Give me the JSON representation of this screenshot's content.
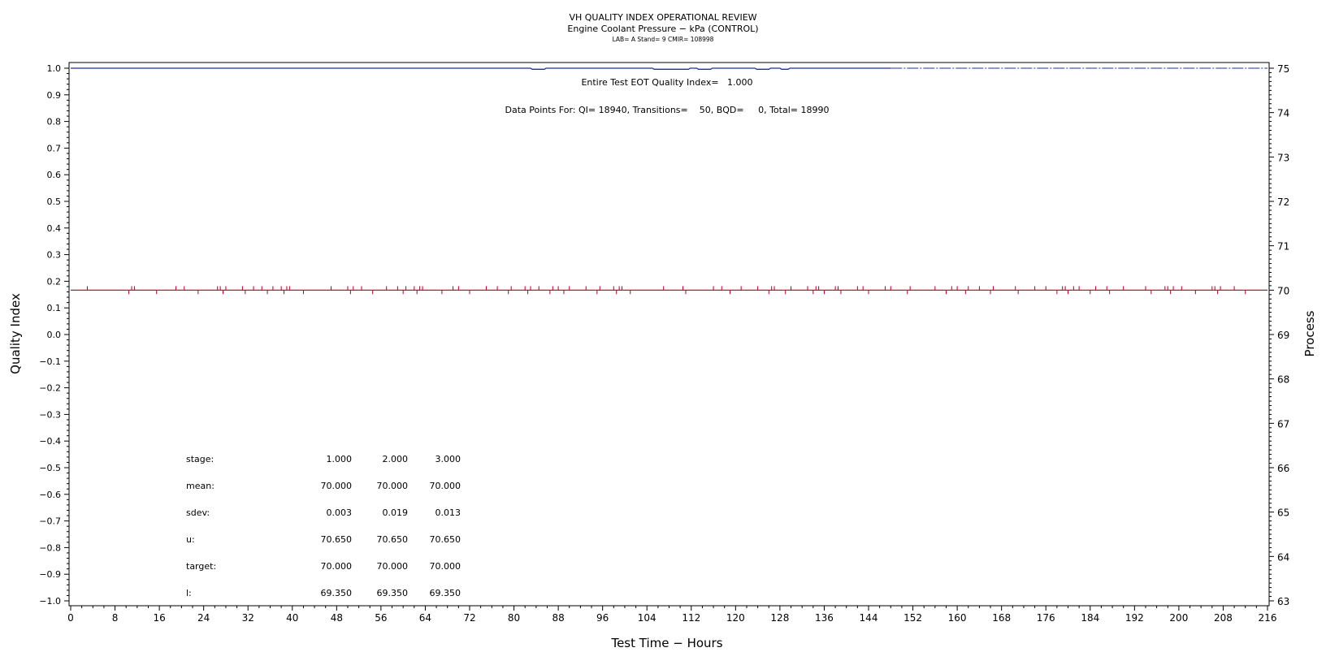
{
  "chart_data": {
    "type": "line",
    "title": "VH QUALITY INDEX OPERATIONAL REVIEW",
    "subtitle": "Engine Coolant Pressure − kPa (CONTROL)",
    "subsubtitle": "LAB= A Stand= 9 CMIR= 108998",
    "xlabel": "Test Time − Hours",
    "ylabel_left": "Quality Index",
    "ylabel_right": "Process",
    "xlim": [
      0,
      216
    ],
    "xticks": [
      0,
      8,
      16,
      24,
      32,
      40,
      48,
      56,
      64,
      72,
      80,
      88,
      96,
      104,
      112,
      120,
      128,
      136,
      144,
      152,
      160,
      168,
      176,
      184,
      192,
      200,
      208,
      216
    ],
    "ylim_left": [
      -1.0,
      1.0
    ],
    "yticks_left": [
      "1.0",
      "0.9",
      "0.8",
      "0.7",
      "0.6",
      "0.5",
      "0.4",
      "0.3",
      "0.2",
      "0.1",
      "0.0",
      "−0.1",
      "−0.2",
      "−0.3",
      "−0.4",
      "−0.5",
      "−0.6",
      "−0.7",
      "−0.8",
      "−0.9",
      "−1.0"
    ],
    "ylim_right": [
      63,
      75
    ],
    "yticks_right": [
      "75",
      "74",
      "73",
      "72",
      "71",
      "70",
      "69",
      "68",
      "67",
      "66",
      "65",
      "64",
      "63"
    ],
    "annotations": [
      "Entire Test EOT Quality Index=   1.000",
      "Data Points For: QI= 18940, Transitions=    50, BQD=     0, Total= 18990"
    ],
    "grid": false,
    "series": [
      {
        "axis": "left",
        "color": "#1f2f9f",
        "points": [
          [
            0,
            1.0
          ],
          [
            83,
            1.0
          ],
          [
            83.3,
            0.996
          ],
          [
            85.5,
            0.996
          ],
          [
            85.8,
            1.0
          ],
          [
            105,
            1.0
          ],
          [
            105.3,
            0.996
          ],
          [
            111.5,
            0.996
          ],
          [
            111.8,
            1.0
          ],
          [
            113,
            1.0
          ],
          [
            113.3,
            0.996
          ],
          [
            115.5,
            0.996
          ],
          [
            115.8,
            1.0
          ],
          [
            123.5,
            1.0
          ],
          [
            123.8,
            0.996
          ],
          [
            126,
            0.996
          ],
          [
            126.3,
            1.0
          ],
          [
            128,
            1.0
          ],
          [
            128.3,
            0.996
          ],
          [
            129.5,
            0.996
          ],
          [
            129.8,
            1.0
          ],
          [
            148,
            1.0
          ]
        ],
        "dashed_from_to": [
          148,
          216,
          1.0
        ]
      },
      {
        "axis": "right",
        "color": "#b0002a",
        "baseline": 70.0,
        "spike_hours": [
          3,
          10.5,
          11,
          11.5,
          15.5,
          19,
          20.5,
          23,
          26.5,
          27,
          27.5,
          28,
          31,
          31.5,
          33,
          34.5,
          35.5,
          36.5,
          38,
          38.5,
          39,
          39.5,
          42,
          47,
          50,
          50.5,
          51,
          52.5,
          54.5,
          57,
          59,
          60,
          60.5,
          62,
          62.5,
          63,
          63.5,
          67,
          69,
          70,
          72,
          75,
          77,
          79,
          79.5,
          82,
          82.5,
          83,
          84.5,
          86.5,
          87,
          88,
          89,
          90,
          93,
          95,
          95.5,
          98,
          98.5,
          99,
          99.5,
          101,
          107,
          110.5,
          111,
          116,
          117.5,
          119,
          121,
          124,
          126,
          126.5,
          127,
          129,
          130,
          133,
          134,
          134.5,
          135,
          136,
          138,
          138.5,
          139,
          142,
          143,
          144,
          147,
          148,
          151,
          151.5,
          156,
          158,
          159,
          160,
          161.5,
          162,
          164,
          166,
          166.5,
          170.5,
          171,
          174,
          176,
          178,
          179,
          179.5,
          180,
          181,
          182,
          184,
          185,
          187,
          187.5,
          190,
          194,
          195,
          197.5,
          198,
          198.5,
          199,
          200.5,
          203,
          206,
          206.5,
          207,
          207.5,
          210,
          212
        ],
        "spike_height": 0.09
      }
    ],
    "stats_table": {
      "rows": [
        {
          "label": "stage:",
          "values": [
            "1.000",
            "2.000",
            "3.000"
          ]
        },
        {
          "label": "mean:",
          "values": [
            "70.000",
            "70.000",
            "70.000"
          ]
        },
        {
          "label": "sdev:",
          "values": [
            "0.003",
            "0.019",
            "0.013"
          ]
        },
        {
          "label": "u:",
          "values": [
            "70.650",
            "70.650",
            "70.650"
          ]
        },
        {
          "label": "target:",
          "values": [
            "70.000",
            "70.000",
            "70.000"
          ]
        },
        {
          "label": "l:",
          "values": [
            "69.350",
            "69.350",
            "69.350"
          ]
        }
      ]
    }
  }
}
